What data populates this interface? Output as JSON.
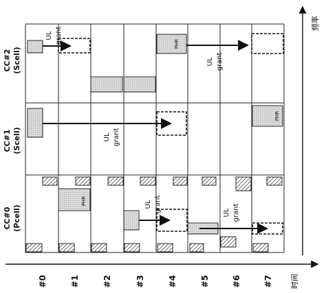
{
  "carriers": [
    {
      "name": "CC#2",
      "type": "(Scell)"
    },
    {
      "name": "CC#1",
      "type": "(Scell)"
    },
    {
      "name": "CC#0",
      "type": "(Pcell)"
    }
  ],
  "subframes": [
    "#0",
    "#1",
    "#2",
    "#3",
    "#4",
    "#5",
    "#6",
    "#7"
  ],
  "axes": {
    "time": "时间",
    "frequency": "频率"
  },
  "labels": {
    "phr": "PHR",
    "ul": "UL",
    "grant": "grant"
  }
}
